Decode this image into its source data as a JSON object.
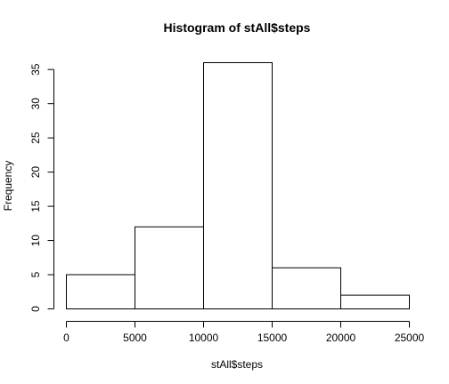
{
  "chart_data": {
    "type": "bar",
    "title": "Histogram of stAll$steps",
    "xlabel": "stAll$steps",
    "ylabel": "Frequency",
    "bins": [
      {
        "from": 0,
        "to": 5000,
        "count": 5
      },
      {
        "from": 5000,
        "to": 10000,
        "count": 12
      },
      {
        "from": 10000,
        "to": 15000,
        "count": 36
      },
      {
        "from": 15000,
        "to": 20000,
        "count": 6
      },
      {
        "from": 20000,
        "to": 25000,
        "count": 2
      }
    ],
    "xlim": [
      0,
      25000
    ],
    "ylim": [
      0,
      36
    ],
    "x_ticks": [
      0,
      5000,
      10000,
      15000,
      20000,
      25000
    ],
    "x_tick_labels": [
      "0",
      "5000",
      "10000",
      "15000",
      "20000",
      "25000"
    ],
    "y_ticks": [
      0,
      5,
      10,
      15,
      20,
      25,
      30,
      35
    ],
    "y_tick_labels": [
      "0",
      "5",
      "10",
      "15",
      "20",
      "25",
      "30",
      "35"
    ],
    "grid": false,
    "legend": "none",
    "colors": {
      "bar_fill": "#ffffff",
      "bar_stroke": "#000000",
      "text": "#000000"
    }
  }
}
